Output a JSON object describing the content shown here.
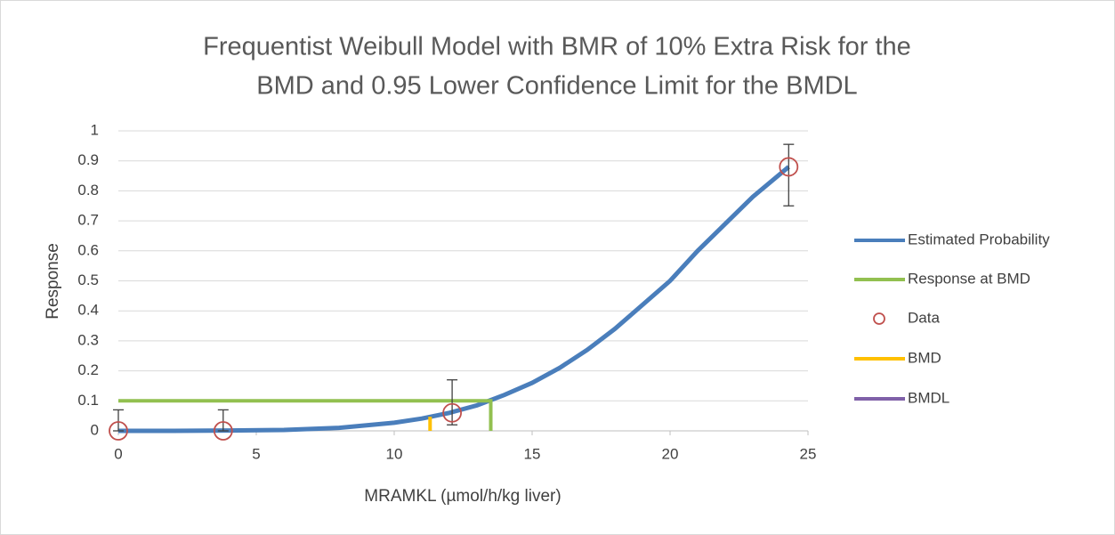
{
  "chart_data": {
    "type": "line",
    "title": [
      "Frequentist Weibull Model with BMR of 10% Extra Risk for the",
      "BMD and 0.95 Lower Confidence Limit for the BMDL"
    ],
    "x_label": "MRAMKL (µmol/h/kg liver)",
    "y_label": "Response",
    "xlim": [
      0,
      25
    ],
    "xticks": [
      0,
      5,
      10,
      15,
      20,
      25
    ],
    "ylim": [
      0,
      1
    ],
    "yticks": [
      0,
      0.1,
      0.2,
      0.3,
      0.4,
      0.5,
      0.6,
      0.7,
      0.8,
      0.9,
      1
    ],
    "grid": true,
    "legend": "right",
    "series": [
      {
        "name": "Estimated Probability",
        "color": "#4a7ebb",
        "style": "line",
        "x": [
          0,
          2,
          4,
          6,
          8,
          10,
          11,
          12,
          13,
          14,
          15,
          16,
          17,
          18,
          19,
          20,
          21,
          22,
          23,
          24.3
        ],
        "values": [
          0,
          0,
          0.001,
          0.003,
          0.01,
          0.027,
          0.041,
          0.06,
          0.085,
          0.12,
          0.16,
          0.21,
          0.27,
          0.34,
          0.42,
          0.5,
          0.6,
          0.69,
          0.78,
          0.88
        ]
      },
      {
        "name": "Response at BMD",
        "color": "#92c050",
        "style": "line",
        "x": [
          0,
          13.5,
          13.5
        ],
        "values": [
          0.1,
          0.1,
          0
        ]
      },
      {
        "name": "Data",
        "color": "#c0504d",
        "style": "marker",
        "x": [
          0,
          3.8,
          12.1,
          24.3
        ],
        "values": [
          0,
          0,
          0.06,
          0.88
        ],
        "lower": [
          0,
          0,
          0.02,
          0.75
        ],
        "upper": [
          0.07,
          0.07,
          0.17,
          0.955
        ]
      },
      {
        "name": "BMD",
        "color": "#ffc000",
        "style": "line",
        "x": [
          11.3,
          11.3
        ],
        "values": [
          0,
          0.047
        ]
      },
      {
        "name": "BMDL",
        "color": "#7f60a8",
        "style": "line",
        "x": [],
        "values": []
      }
    ]
  }
}
